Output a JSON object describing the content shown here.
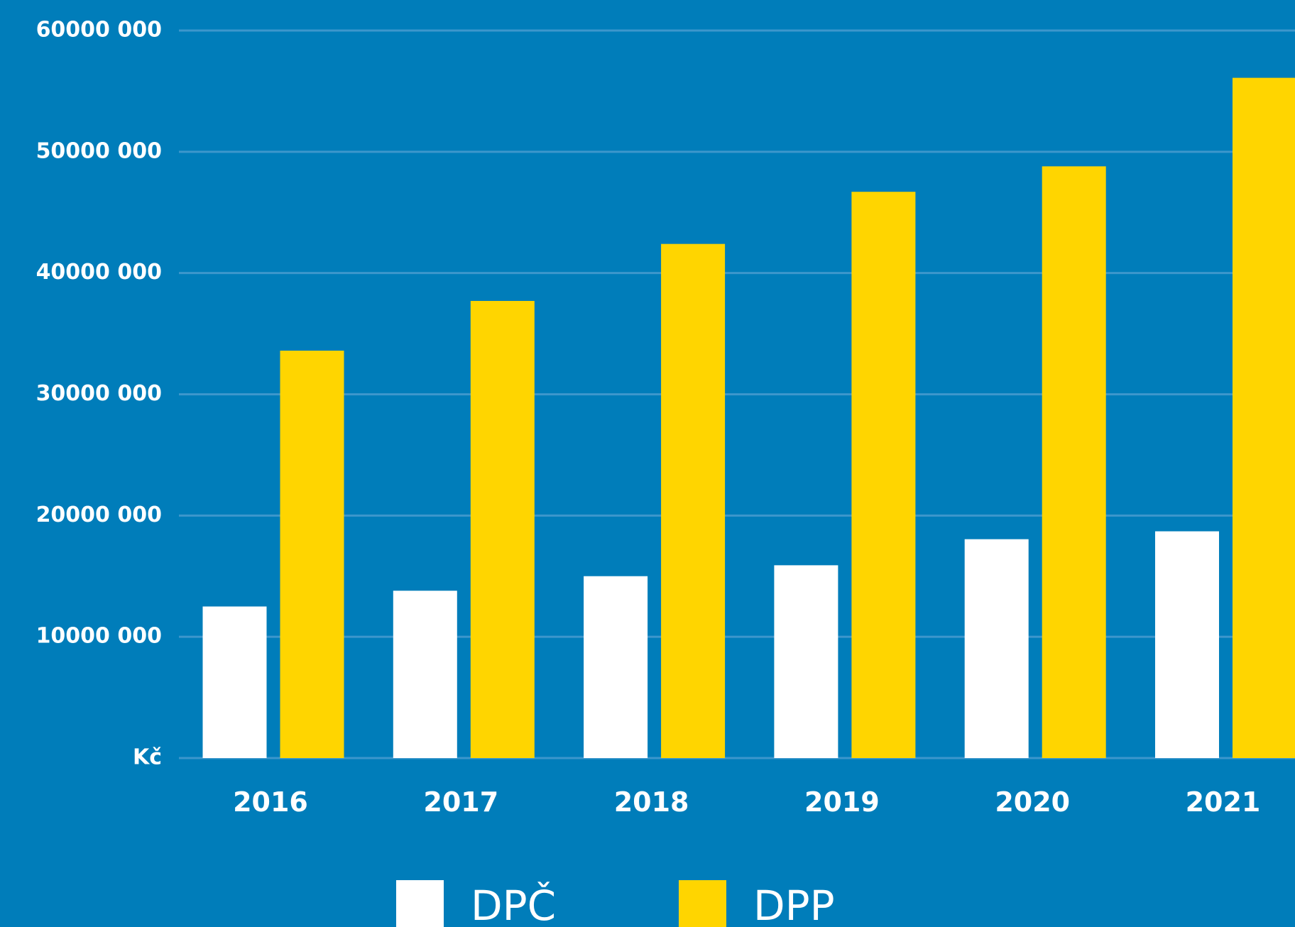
{
  "chart_data": {
    "type": "bar",
    "categories": [
      "2016",
      "2017",
      "2018",
      "2019",
      "2020",
      "2021"
    ],
    "series": [
      {
        "name": "DPČ",
        "color": "#ffffff",
        "values": [
          12500000,
          13800000,
          15000000,
          15900000,
          18050000,
          18700000
        ]
      },
      {
        "name": "DPP",
        "color": "#ffd500",
        "values": [
          33600000,
          37700000,
          42400000,
          46700000,
          48800000,
          56100000
        ]
      }
    ],
    "ylim": [
      0,
      60000000
    ],
    "yticks": [
      {
        "value": 0,
        "label": "Kč"
      },
      {
        "value": 10000000,
        "label": "10000 000"
      },
      {
        "value": 20000000,
        "label": "20000 000"
      },
      {
        "value": 30000000,
        "label": "30000 000"
      },
      {
        "value": 40000000,
        "label": "40000 000"
      },
      {
        "value": 50000000,
        "label": "50000 000"
      },
      {
        "value": 60000000,
        "label": "60000 000"
      }
    ],
    "grid": true,
    "background": "#007dba",
    "legend": "bottom"
  }
}
